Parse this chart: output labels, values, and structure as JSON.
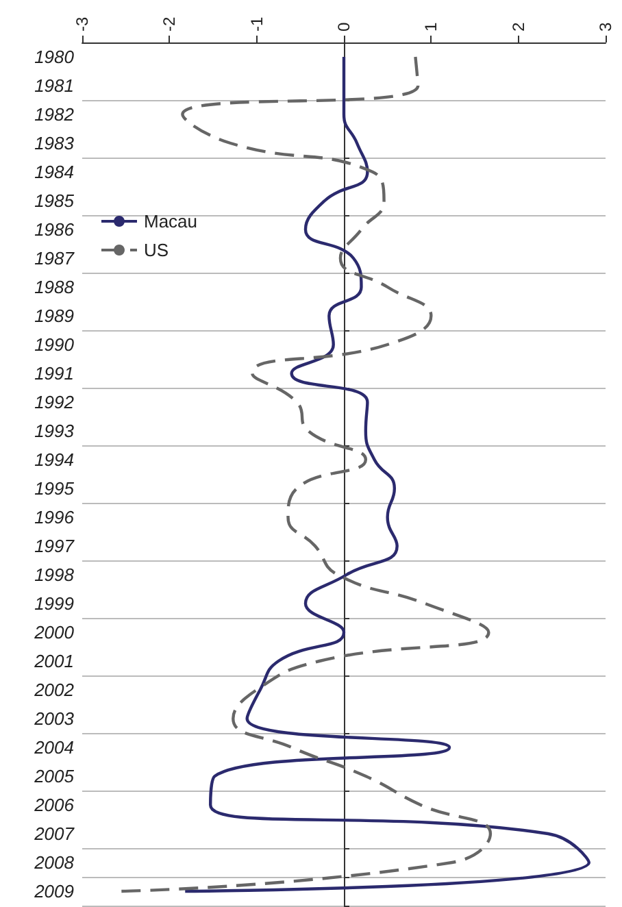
{
  "chart_data": {
    "type": "line",
    "orientation": "horizontal",
    "categories": [
      "1980",
      "1981",
      "1982",
      "1983",
      "1984",
      "1985",
      "1986",
      "1987",
      "1988",
      "1989",
      "1990",
      "1991",
      "1992",
      "1993",
      "1994",
      "1995",
      "1996",
      "1997",
      "1998",
      "1999",
      "2000",
      "2001",
      "2002",
      "2003",
      "2004",
      "2005",
      "2006",
      "2007",
      "2008",
      "2009"
    ],
    "series": [
      {
        "name": "Macau",
        "color": "#2b2a6e",
        "line_style": "solid",
        "values": [
          0,
          0,
          0,
          0.15,
          0.27,
          -0.22,
          -0.44,
          0.11,
          0.2,
          -0.17,
          -0.12,
          -0.6,
          0.27,
          0.25,
          0.35,
          0.58,
          0.5,
          0.61,
          0.03,
          -0.44,
          0,
          -0.75,
          -0.96,
          -1.11,
          1.21,
          -1.48,
          -1.53,
          2.34,
          2.81,
          -1.82
        ]
      },
      {
        "name": "US",
        "color": "#666666",
        "line_style": "dashed",
        "values": [
          0.82,
          0.85,
          -1.85,
          -1.3,
          0.33,
          0.46,
          0.2,
          -0.04,
          0.5,
          1.0,
          0.5,
          -1.05,
          -0.54,
          -0.41,
          0.25,
          -0.54,
          -0.64,
          -0.33,
          -0.07,
          0.93,
          1.66,
          -0.28,
          -1.0,
          -1.27,
          -0.6,
          0.25,
          0.88,
          1.68,
          1.24,
          -2.55
        ]
      }
    ],
    "xlim": [
      -3,
      3
    ],
    "xticks": [
      -3,
      -2,
      -1,
      0,
      1,
      2,
      3
    ],
    "grid": "y",
    "legend": "left",
    "marker": "none"
  }
}
